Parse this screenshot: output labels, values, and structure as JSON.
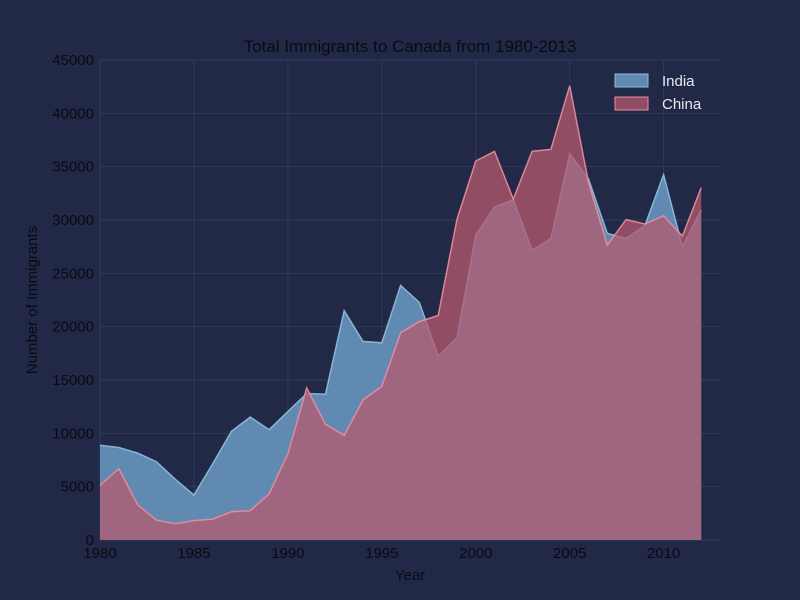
{
  "colors": {
    "background": "#212946",
    "india_fill": "#6b9bc4",
    "india_line": "#8fbfe0",
    "china_fill": "#b5596f",
    "china_line": "#e88ea0",
    "grid": "#2f3a5c"
  },
  "chart_data": {
    "type": "area",
    "title": "Total Immigrants to Canada from 1980-2013",
    "xlabel": "Year",
    "ylabel": "Number of Immigrants",
    "xlim": [
      1980,
      2013
    ],
    "ylim": [
      0,
      45000
    ],
    "grid": true,
    "legend_position": "top-right",
    "x_ticks": [
      1980,
      1985,
      1990,
      1995,
      2000,
      2005,
      2010
    ],
    "y_ticks": [
      0,
      5000,
      10000,
      15000,
      20000,
      25000,
      30000,
      35000,
      40000,
      45000
    ],
    "x": [
      1980,
      1981,
      1982,
      1983,
      1984,
      1985,
      1986,
      1987,
      1988,
      1989,
      1990,
      1991,
      1992,
      1993,
      1994,
      1995,
      1996,
      1997,
      1998,
      1999,
      2000,
      2001,
      2002,
      2003,
      2004,
      2005,
      2006,
      2007,
      2008,
      2009,
      2010,
      2011,
      2012
    ],
    "series": [
      {
        "name": "India",
        "values": [
          8880,
          8670,
          8147,
          7338,
          5704,
          4211,
          7150,
          10189,
          11522,
          10343,
          12041,
          13734,
          13673,
          21496,
          18620,
          18489,
          23859,
          22268,
          17241,
          18974,
          28572,
          31223,
          31889,
          27155,
          28235,
          36210,
          33848,
          28742,
          28261,
          29456,
          34235,
          27509,
          30933
        ]
      },
      {
        "name": "China",
        "values": [
          5123,
          6682,
          3308,
          1863,
          1527,
          1816,
          1960,
          2643,
          2758,
          4323,
          8076,
          14255,
          10846,
          9817,
          13128,
          14398,
          19415,
          20475,
          21049,
          30069,
          35529,
          36434,
          31961,
          36439,
          36619,
          42584,
          33518,
          27642,
          30037,
          29622,
          30391,
          28502,
          33024
        ]
      }
    ]
  }
}
